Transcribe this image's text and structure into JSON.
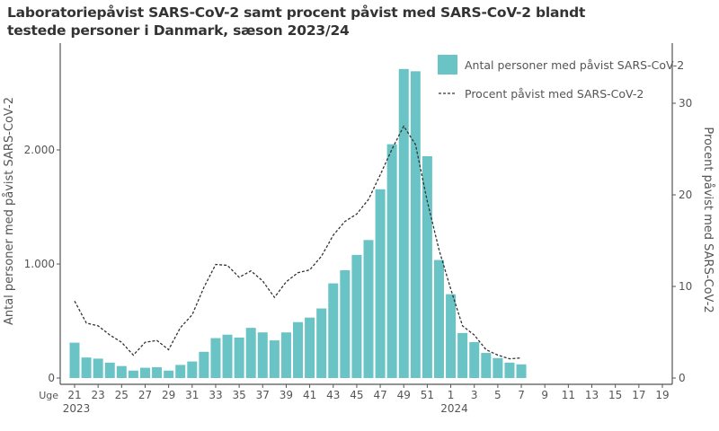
{
  "chart_data": {
    "type": "bar+line",
    "title": "Laboratoriepåvist SARS-CoV-2 samt procent påvist med SARS-CoV-2 blandt testede personer i Danmark, sæson 2023/24",
    "xlabel_prefix": "Uge",
    "year_labels": [
      {
        "label": "2023",
        "at_week": "21"
      },
      {
        "label": "2024",
        "at_week": "1"
      }
    ],
    "ylabel_left": "Antal personer med påvist SARS-CoV-2",
    "ylabel_right": "Procent påvist med SARS-CoV-2",
    "ylim_left": [
      0,
      2800
    ],
    "yticks_left": [
      {
        "v": 0,
        "label": "0"
      },
      {
        "v": 1000,
        "label": "1.000"
      },
      {
        "v": 2000,
        "label": "2.000"
      }
    ],
    "ylim_right": [
      0,
      36
    ],
    "yticks_right": [
      {
        "v": 0,
        "label": "0"
      },
      {
        "v": 10,
        "label": "10"
      },
      {
        "v": 20,
        "label": "20"
      },
      {
        "v": 30,
        "label": "30"
      }
    ],
    "weeks": [
      "21",
      "22",
      "23",
      "24",
      "25",
      "26",
      "27",
      "28",
      "29",
      "30",
      "31",
      "32",
      "33",
      "34",
      "35",
      "36",
      "37",
      "38",
      "39",
      "40",
      "41",
      "42",
      "43",
      "44",
      "45",
      "46",
      "47",
      "48",
      "49",
      "50",
      "51",
      "52",
      "1",
      "2",
      "3",
      "4",
      "5",
      "6",
      "7",
      "8",
      "9",
      "10",
      "11",
      "12",
      "13",
      "14",
      "15",
      "16",
      "17",
      "18",
      "19"
    ],
    "series": [
      {
        "name": "Antal personer med påvist SARS-CoV-2",
        "type": "bar",
        "axis": "left",
        "color": "#6AC4C5",
        "values": [
          310,
          180,
          170,
          135,
          105,
          65,
          90,
          95,
          65,
          115,
          145,
          230,
          350,
          380,
          355,
          440,
          400,
          330,
          400,
          490,
          530,
          610,
          830,
          945,
          1080,
          1210,
          1655,
          2050,
          2710,
          2690,
          1945,
          1035,
          735,
          395,
          315,
          220,
          175,
          135,
          120,
          null,
          null,
          null,
          null,
          null,
          null,
          null,
          null,
          null,
          null,
          null,
          null
        ]
      },
      {
        "name": "Procent påvist med SARS-CoV-2",
        "type": "line",
        "axis": "right",
        "color": "#333333",
        "dash": true,
        "values": [
          8.4,
          6.0,
          5.7,
          4.7,
          3.9,
          2.5,
          3.9,
          4.1,
          3.1,
          5.5,
          6.9,
          9.9,
          12.4,
          12.3,
          11.0,
          11.7,
          10.6,
          8.8,
          10.5,
          11.5,
          11.8,
          13.3,
          15.6,
          17.1,
          17.9,
          19.5,
          22.2,
          25.0,
          27.5,
          25.5,
          19.3,
          14.0,
          9.7,
          5.7,
          4.7,
          3.1,
          2.5,
          2.1,
          2.2,
          null,
          null,
          null,
          null,
          null,
          null,
          null,
          null,
          null,
          null,
          null,
          null
        ]
      }
    ],
    "legend": "top-right",
    "grid": false
  }
}
